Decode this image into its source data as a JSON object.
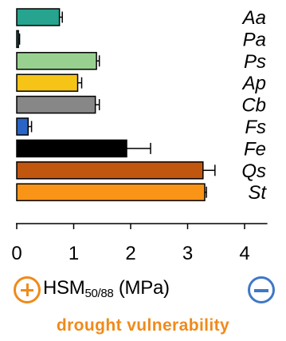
{
  "chart_data": {
    "type": "bar",
    "orientation": "horizontal",
    "categories": [
      "Aa",
      "Pa",
      "Ps",
      "Ap",
      "Cb",
      "Fs",
      "Fe",
      "Qs",
      "St"
    ],
    "values": [
      0.75,
      0.03,
      1.4,
      1.07,
      1.38,
      0.2,
      1.93,
      3.27,
      3.3
    ],
    "errors": [
      0.05,
      0.02,
      0.05,
      0.07,
      0.07,
      0.06,
      0.42,
      0.21,
      0.03
    ],
    "colors": [
      "#26a48f",
      "#1f9e8a",
      "#98d18f",
      "#f6c417",
      "#878787",
      "#2a65c5",
      "#000000",
      "#c1560f",
      "#fa9417"
    ],
    "xticks": [
      0,
      1,
      2,
      3,
      4
    ],
    "xlim": [
      0,
      4.4
    ],
    "xlabel_main": "HSM",
    "xlabel_sub": "50/88",
    "xlabel_unit": "(MPa)",
    "legend_position": "none",
    "grid": false,
    "plus_icon": "plus-circle-icon",
    "minus_icon": "minus-circle-icon",
    "accent_orange": "#f08a1a",
    "accent_blue": "#3f78c6"
  },
  "subtitle": "drought vulnerability"
}
